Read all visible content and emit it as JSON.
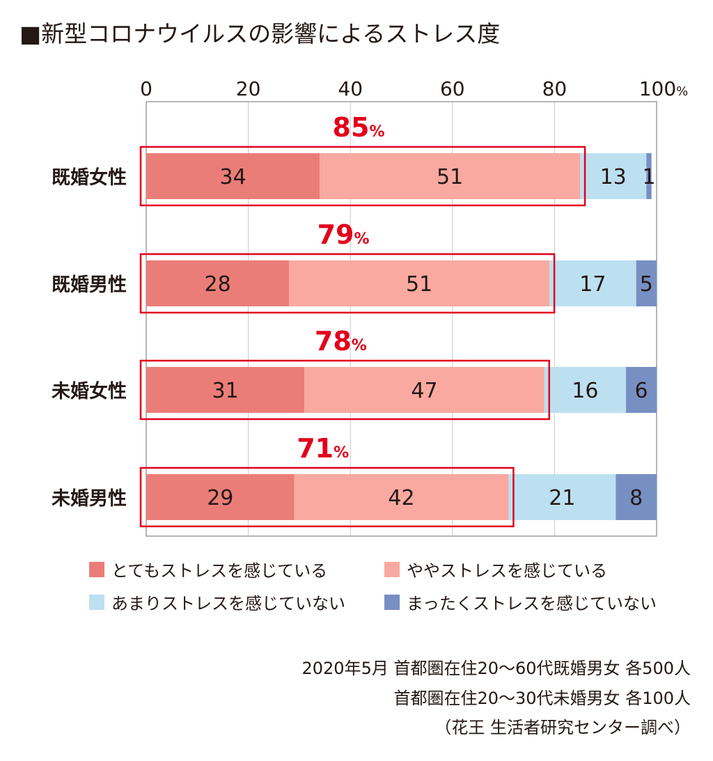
{
  "title": "■新型コロナウイルスの影響によるストレス度",
  "chart_data": {
    "type": "bar",
    "orientation": "horizontal",
    "stacked": true,
    "title": "■新型コロナウイルスの影響によるストレス度",
    "x_ticks": [
      "0",
      "20",
      "40",
      "60",
      "80",
      "100"
    ],
    "x_unit": "%",
    "xlim": [
      0,
      100
    ],
    "grid": true,
    "categories": [
      "既婚女性",
      "既婚男性",
      "未婚女性",
      "未婚男性"
    ],
    "series": [
      {
        "name": "とてもストレスを感じている",
        "values": [
          34,
          28,
          31,
          29
        ],
        "color": "#eb7d78"
      },
      {
        "name": "ややストレスを感じている",
        "values": [
          51,
          51,
          47,
          42
        ],
        "color": "#f9a9a0"
      },
      {
        "name": "あまりストレスを感じていない",
        "values": [
          13,
          17,
          16,
          21
        ],
        "color": "#bde0f1"
      },
      {
        "name": "まったくストレスを感じていない",
        "values": [
          1,
          5,
          6,
          8
        ],
        "color": "#7790c4"
      }
    ],
    "highlight": {
      "values": [
        "85",
        "79",
        "78",
        "71"
      ],
      "unit": "%",
      "color": "#e2001c"
    }
  },
  "notes": [
    "2020年5月 首都圏在住20～60代既婚男女 各500人",
    "首都圏在住20～30代未婚男女 各100人",
    "（花王 生活者研究センター調べ）"
  ]
}
